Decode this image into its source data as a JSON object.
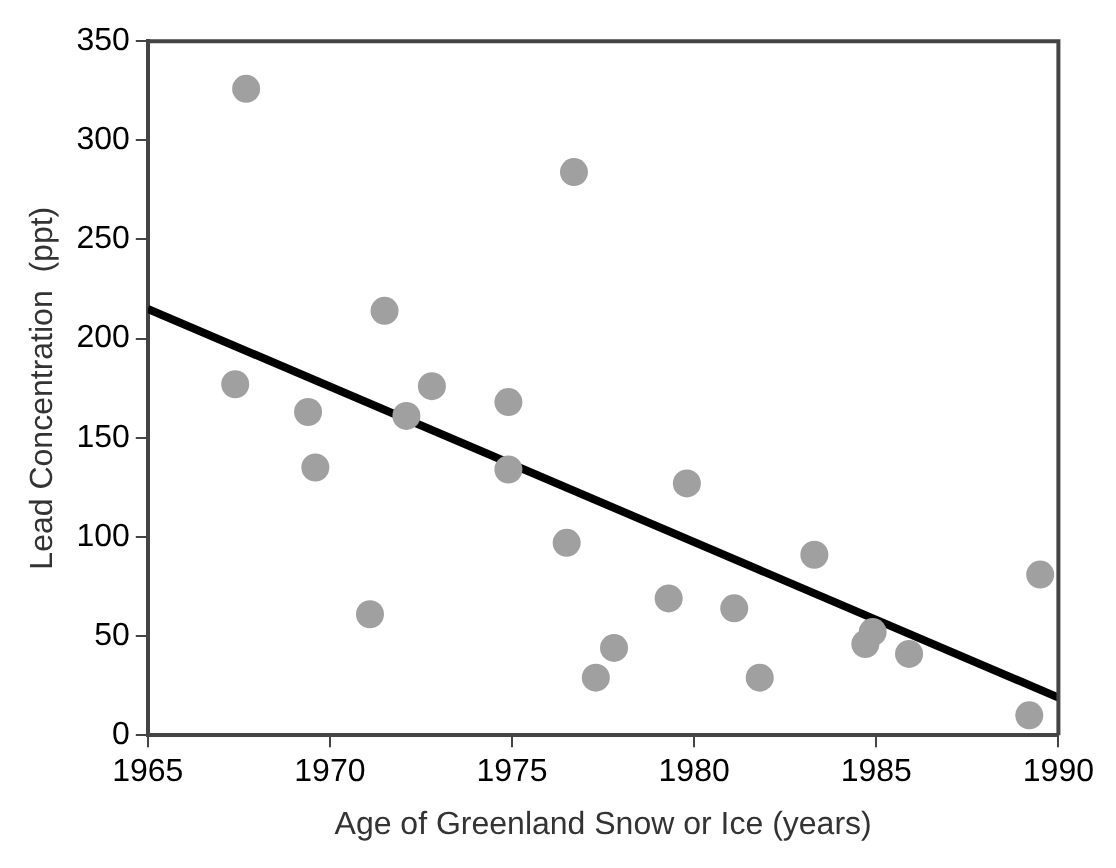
{
  "chart_data": {
    "type": "scatter",
    "xlabel": "Age of Greenland Snow or Ice (years)",
    "ylabel": "Lead Concentration  (ppt)",
    "xlim": [
      1965,
      1990
    ],
    "xticks": [
      1965,
      1970,
      1975,
      1980,
      1985,
      1990
    ],
    "ylim": [
      0,
      350
    ],
    "yticks": [
      0,
      50,
      100,
      150,
      200,
      250,
      300,
      350
    ],
    "grid": false,
    "legend": false,
    "series": [
      {
        "marker": "circle",
        "color": "#a0a0a0",
        "x": [
          1967.7,
          1976.7,
          1971.5,
          1967.4,
          1969.4,
          1972.8,
          1972.1,
          1974.9,
          1969.6,
          1974.9,
          1976.5,
          1971.1,
          1979.8,
          1983.3,
          1979.3,
          1981.1,
          1977.8,
          1977.3,
          1981.8,
          1989.5,
          1984.7,
          1984.9,
          1985.9,
          1989.2
        ],
        "values": [
          326,
          284,
          214,
          177,
          163,
          176,
          161,
          168,
          135,
          134,
          97,
          61,
          127,
          91,
          69,
          64,
          44,
          29,
          29,
          81,
          46,
          52,
          41,
          10
        ]
      },
      {
        "type": "line",
        "marker": "none",
        "color": "#000000",
        "x": [
          1965,
          1990
        ],
        "values": [
          215,
          19
        ]
      }
    ]
  }
}
